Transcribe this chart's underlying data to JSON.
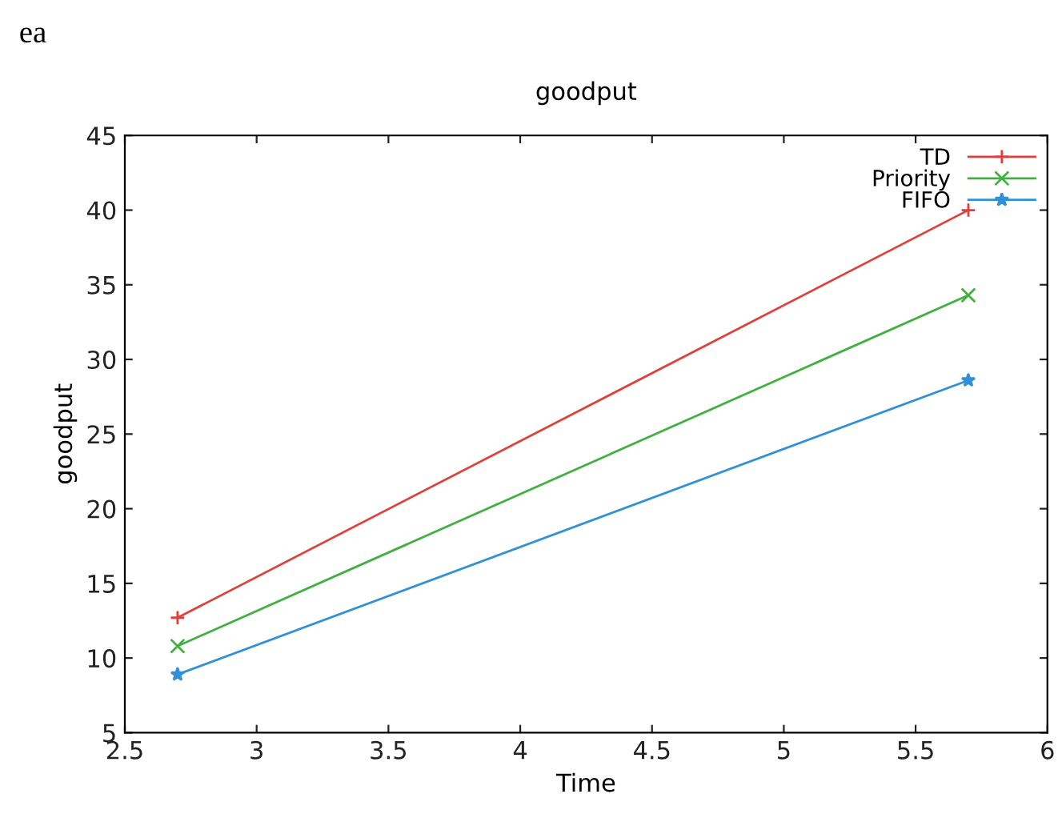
{
  "chart_data": {
    "type": "line",
    "title": "goodput",
    "xlabel": "Time",
    "ylabel": "goodput",
    "annotations": [
      "ea"
    ],
    "xlim": [
      2.5,
      6
    ],
    "xticks": [
      2.5,
      3,
      3.5,
      4,
      4.5,
      5,
      5.5,
      6
    ],
    "ylim": [
      5,
      45
    ],
    "yticks": [
      5,
      10,
      15,
      20,
      25,
      30,
      35,
      40,
      45
    ],
    "x": [
      2.7,
      5.7
    ],
    "grid": false,
    "legend": "top right",
    "line_style": "solid",
    "series": [
      {
        "name": "TD",
        "color": "#e0403a",
        "values": [
          12.7,
          40.0
        ],
        "marker": "cross"
      },
      {
        "name": "Priority",
        "color": "#40b040",
        "values": [
          10.8,
          34.3
        ],
        "marker": "x"
      },
      {
        "name": "FIFO",
        "color": "#3090d8",
        "values": [
          8.9,
          28.6
        ],
        "marker": "star"
      }
    ]
  }
}
